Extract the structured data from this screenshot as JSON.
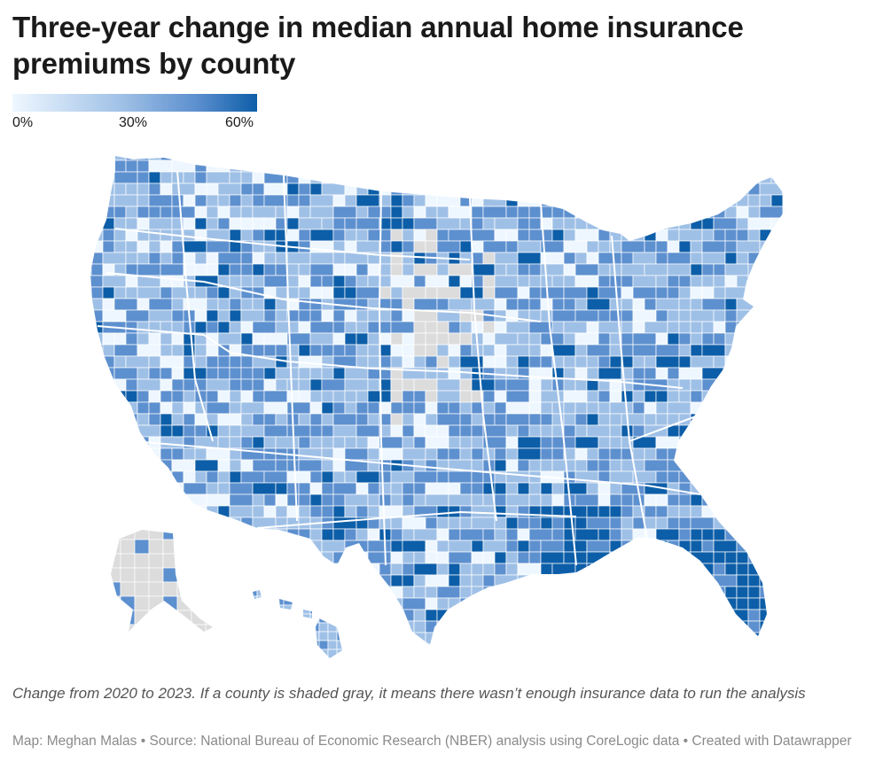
{
  "title": "Three-year change in median annual home insurance premiums by county",
  "legend": {
    "labels": [
      "0%",
      "30%",
      "60%"
    ],
    "colors": [
      "#eef7ff",
      "#9fc0e6",
      "#5d90cf",
      "#0d5ea8"
    ],
    "no_data_color": "#dcdcdc"
  },
  "caption": "Change from 2020 to 2023. If a county is shaded gray, it means there wasn’t enough insurance data to run the analysis",
  "credits": "Map: Meghan Malas • Source: National Bureau of Economic Research (NBER) analysis using CoreLogic data • Created with Datawrapper"
}
